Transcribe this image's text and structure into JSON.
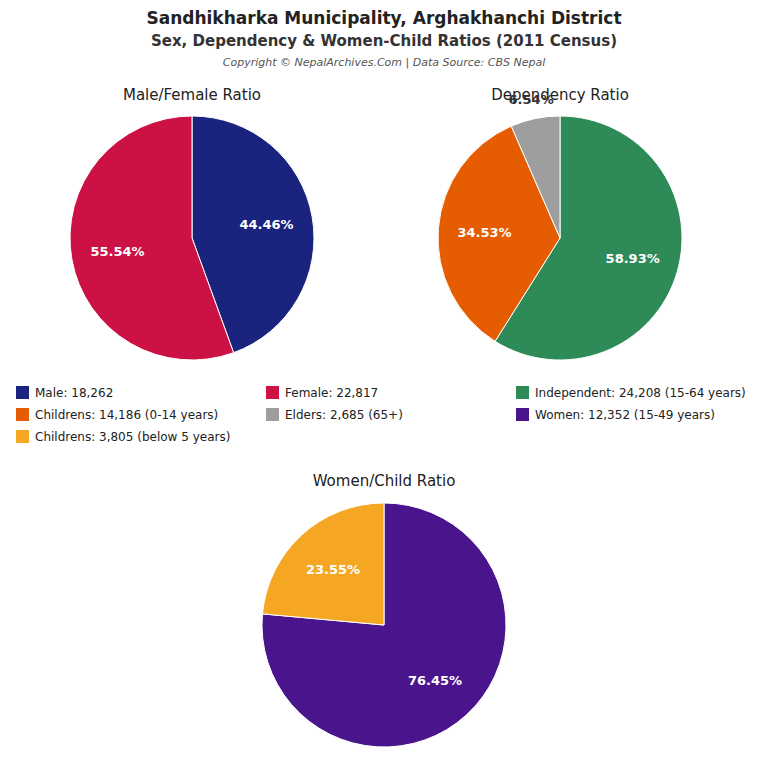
{
  "title": "Sandhikharka Municipality, Arghakhanchi District",
  "subtitle": "Sex, Dependency & Women-Child Ratios (2011 Census)",
  "annotations": [
    "Copyright © NepalArchives.Com | Data Source: CBS Nepal"
  ],
  "chart_data": [
    {
      "type": "pie",
      "title": "Male/Female Ratio",
      "categories": [
        "Male: 18,262",
        "Female: 22,817"
      ],
      "values": [
        44.46,
        55.54
      ],
      "value_labels": [
        "44.46%",
        "55.54%"
      ],
      "colors": [
        "#1a237e",
        "#cc1144"
      ],
      "data_labels": true,
      "legend": "left"
    },
    {
      "type": "pie",
      "title": "Dependency Ratio",
      "categories": [
        "Independent: 24,208 (15-64 years)",
        "Childrens: 14,186 (0-14 years)",
        "Elders: 2,685 (65+)"
      ],
      "values": [
        58.93,
        34.53,
        6.54
      ],
      "value_labels": [
        "58.93%",
        "34.53%",
        "6.54%"
      ],
      "colors": [
        "#2e8b57",
        "#e65c00",
        "#9e9e9e"
      ],
      "data_labels": true,
      "legend": "left"
    },
    {
      "type": "pie",
      "title": "Women/Child Ratio",
      "categories": [
        "Women: 12,352 (15-49 years)",
        "Childrens: 3,805 (below 5 years)"
      ],
      "values": [
        76.45,
        23.55
      ],
      "value_labels": [
        "76.45%",
        "23.55%"
      ],
      "colors": [
        "#4a148c",
        "#f5a623"
      ],
      "data_labels": true,
      "legend": "left"
    }
  ]
}
